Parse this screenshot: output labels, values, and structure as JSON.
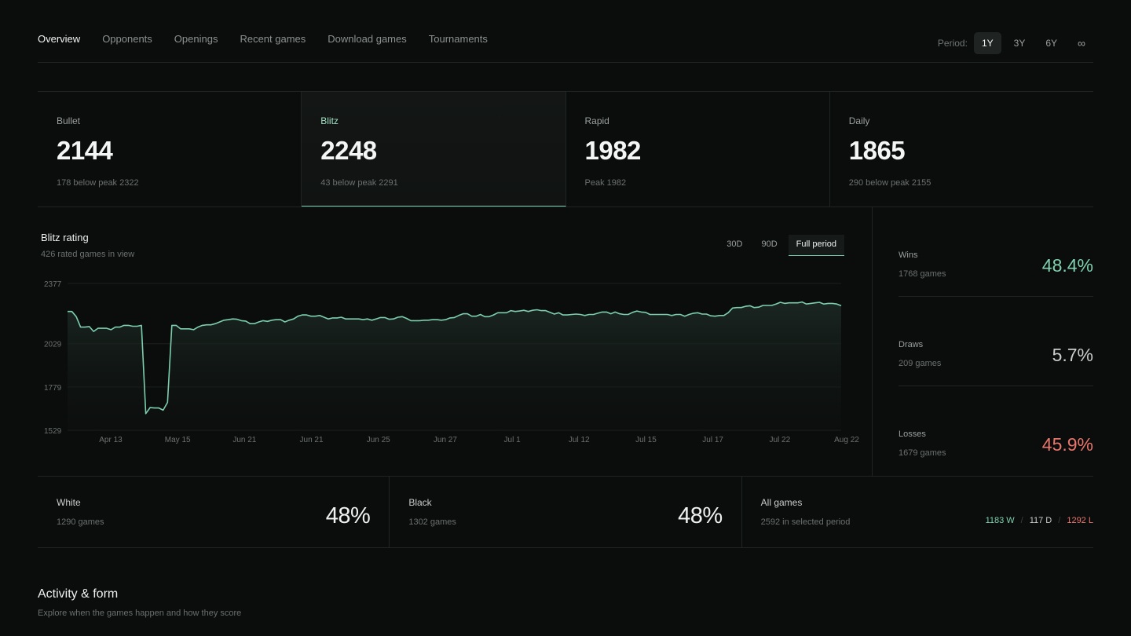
{
  "nav": {
    "tabs": [
      {
        "label": "Overview",
        "active": true
      },
      {
        "label": "Opponents"
      },
      {
        "label": "Openings"
      },
      {
        "label": "Recent games"
      },
      {
        "label": "Download games"
      },
      {
        "label": "Tournaments"
      }
    ],
    "period_label": "Period:",
    "period_options": [
      "1Y",
      "3Y",
      "6Y",
      "∞"
    ],
    "period_selected": "1Y"
  },
  "ratings": [
    {
      "label": "Bullet",
      "value": "2144",
      "sub": "178 below peak 2322"
    },
    {
      "label": "Blitz",
      "value": "2248",
      "sub": "43 below peak 2291",
      "active": true
    },
    {
      "label": "Rapid",
      "value": "1982",
      "sub": "Peak 1982"
    },
    {
      "label": "Daily",
      "value": "1865",
      "sub": "290 below peak 2155"
    }
  ],
  "chart_panel": {
    "title": "Blitz rating",
    "subtitle": "426 rated games in view",
    "ranges": [
      "30D",
      "90D",
      "Full period"
    ],
    "range_selected": "Full period"
  },
  "chart_data": {
    "type": "area",
    "title": "Blitz rating",
    "xlabel": "",
    "ylabel": "",
    "x_ticks": [
      "Apr 13",
      "May 15",
      "Jun 21",
      "Jun 21",
      "Jun 25",
      "Jun 27",
      "Jul 1",
      "Jul 12",
      "Jul 15",
      "Jul 17",
      "Jul 22",
      "Aug 22"
    ],
    "y_ticks": [
      2377,
      2029,
      1779,
      1529
    ],
    "ylim": [
      1529,
      2377
    ],
    "grid": true,
    "series": [
      {
        "values": [
          2215,
          2215,
          2185,
          2125,
          2125,
          2128,
          2100,
          2118,
          2118,
          2118,
          2110,
          2125,
          2125,
          2135,
          2135,
          2130,
          2130,
          2135,
          1625,
          1660,
          1658,
          1658,
          1645,
          1690,
          2135,
          2135,
          2115,
          2115,
          2115,
          2110,
          2125,
          2135,
          2138,
          2138,
          2145,
          2155,
          2165,
          2168,
          2172,
          2170,
          2162,
          2160,
          2145,
          2145,
          2155,
          2162,
          2158,
          2165,
          2168,
          2168,
          2155,
          2165,
          2172,
          2188,
          2195,
          2195,
          2188,
          2188,
          2192,
          2182,
          2172,
          2178,
          2178,
          2182,
          2172,
          2172,
          2172,
          2172,
          2168,
          2172,
          2165,
          2172,
          2180,
          2180,
          2170,
          2172,
          2182,
          2185,
          2175,
          2162,
          2162,
          2162,
          2165,
          2165,
          2168,
          2168,
          2165,
          2168,
          2178,
          2180,
          2192,
          2202,
          2202,
          2188,
          2188,
          2198,
          2185,
          2185,
          2195,
          2208,
          2208,
          2208,
          2220,
          2215,
          2218,
          2222,
          2215,
          2222,
          2225,
          2220,
          2220,
          2210,
          2200,
          2208,
          2195,
          2195,
          2198,
          2200,
          2198,
          2192,
          2198,
          2198,
          2205,
          2212,
          2212,
          2202,
          2212,
          2202,
          2198,
          2198,
          2210,
          2218,
          2212,
          2210,
          2198,
          2198,
          2198,
          2198,
          2198,
          2192,
          2198,
          2198,
          2188,
          2198,
          2205,
          2208,
          2200,
          2200,
          2190,
          2188,
          2192,
          2192,
          2208,
          2235,
          2238,
          2238,
          2245,
          2248,
          2238,
          2240,
          2250,
          2250,
          2250,
          2258,
          2268,
          2262,
          2265,
          2265,
          2265,
          2270,
          2258,
          2262,
          2265,
          2268,
          2258,
          2262,
          2262,
          2258,
          2248
        ]
      }
    ]
  },
  "results": [
    {
      "label": "Wins",
      "sub": "1768 games",
      "value": "48.4%",
      "color": "#7fd1b0"
    },
    {
      "label": "Draws",
      "sub": "209 games",
      "value": "5.7%",
      "color": "#c9cdcb"
    },
    {
      "label": "Losses",
      "sub": "1679 games",
      "value": "45.9%",
      "color": "#e8766c"
    }
  ],
  "split": [
    {
      "label": "White",
      "sub": "1290 games",
      "value": "48%"
    },
    {
      "label": "Black",
      "sub": "1302 games",
      "value": "48%"
    },
    {
      "label": "All games",
      "sub": "2592 in selected period",
      "wins": "1183 W",
      "draws": "117 D",
      "losses": "1292 L"
    }
  ],
  "section": {
    "title": "Activity & form",
    "subtitle": "Explore when the games happen and how they score"
  },
  "colors": {
    "accent": "#7ccfae",
    "win": "#7fd1b0",
    "loss": "#e8766c",
    "background": "#0b0d0c"
  }
}
